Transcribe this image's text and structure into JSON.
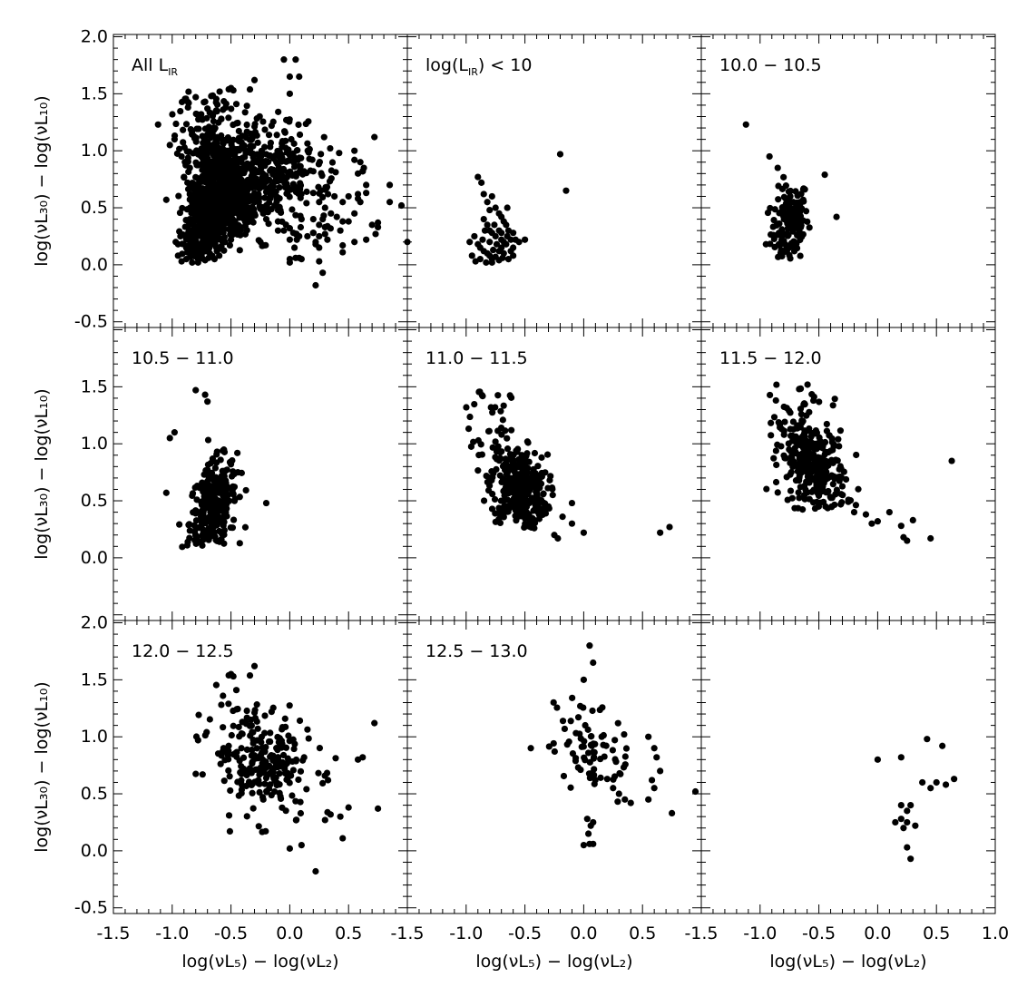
{
  "chart_data": {
    "type": "scatter",
    "layout": "3x3 grid, shared axes",
    "xlim": [
      -1.5,
      1.0
    ],
    "ylim": [
      -0.55,
      2.02
    ],
    "x_ticks": [
      "-1.5",
      "-1.0",
      "-0.5",
      "0.0",
      "0.5",
      "1.0"
    ],
    "x_ticks_inner": [
      "-1.5",
      "-1.0",
      "-0.5",
      "0.0",
      "0.5"
    ],
    "y_ticks": [
      "-0.5",
      "0.0",
      "0.5",
      "1.0",
      "1.5",
      "2.0"
    ],
    "y_ticks_middle": [
      "0.0",
      "0.5",
      "1.0",
      "1.5"
    ],
    "xlabel": "log(νL₅) − log(νL₂)",
    "ylabel": "log(νL₃₀) − log(νL₁₀)",
    "grid": false,
    "marker_color": "#000000",
    "panels": [
      {
        "label": "All L_IR",
        "label_main": "All L",
        "label_sub": "IR",
        "count_approx": 1400
      },
      {
        "label": "log(L_IR) < 10",
        "label_main": "log(L",
        "label_sub": "IR",
        "label_tail": ")  <  10",
        "points": [
          [
            -0.9,
            0.77
          ],
          [
            -0.87,
            0.72
          ],
          [
            -0.85,
            0.62
          ],
          [
            -0.82,
            0.55
          ],
          [
            -0.8,
            0.48
          ],
          [
            -0.78,
            0.6
          ],
          [
            -0.75,
            0.5
          ],
          [
            -0.72,
            0.45
          ],
          [
            -0.7,
            0.42
          ],
          [
            -0.68,
            0.38
          ],
          [
            -0.65,
            0.5
          ],
          [
            -0.85,
            0.4
          ],
          [
            -0.82,
            0.35
          ],
          [
            -0.8,
            0.3
          ],
          [
            -0.78,
            0.28
          ],
          [
            -0.75,
            0.25
          ],
          [
            -0.72,
            0.3
          ],
          [
            -0.7,
            0.22
          ],
          [
            -0.68,
            0.2
          ],
          [
            -0.65,
            0.25
          ],
          [
            -0.62,
            0.22
          ],
          [
            -0.9,
            0.18
          ],
          [
            -0.88,
            0.15
          ],
          [
            -0.85,
            0.12
          ],
          [
            -0.82,
            0.1
          ],
          [
            -0.8,
            0.08
          ],
          [
            -0.78,
            0.05
          ],
          [
            -0.75,
            0.07
          ],
          [
            -0.72,
            0.12
          ],
          [
            -0.7,
            0.15
          ],
          [
            -0.68,
            0.1
          ],
          [
            -0.66,
            0.18
          ],
          [
            -0.64,
            0.05
          ],
          [
            -0.95,
            0.08
          ],
          [
            -0.92,
            0.03
          ],
          [
            -0.88,
            0.05
          ],
          [
            -0.97,
            0.2
          ],
          [
            -0.93,
            0.25
          ],
          [
            -0.6,
            0.28
          ],
          [
            -0.58,
            0.22
          ],
          [
            -0.55,
            0.2
          ],
          [
            -0.62,
            0.12
          ],
          [
            -0.6,
            0.08
          ],
          [
            -0.5,
            0.22
          ],
          [
            -0.76,
            0.35
          ],
          [
            -0.74,
            0.18
          ],
          [
            -0.83,
            0.02
          ],
          [
            -0.78,
            0.02
          ],
          [
            -0.72,
            0.04
          ],
          [
            -0.66,
            0.35
          ],
          [
            -0.64,
            0.3
          ],
          [
            -0.7,
            0.28
          ],
          [
            -0.8,
            0.2
          ],
          [
            -0.86,
            0.22
          ],
          [
            -0.84,
            0.3
          ],
          [
            -0.77,
            0.13
          ],
          [
            -0.69,
            0.06
          ],
          [
            -0.6,
            0.15
          ],
          [
            -0.2,
            0.97
          ],
          [
            -0.15,
            0.65
          ]
        ]
      },
      {
        "label": "10.0 − 10.5",
        "count_approx": 160
      },
      {
        "label": "10.5 − 11.0",
        "count_approx": 300
      },
      {
        "label": "11.0 − 11.5",
        "count_approx": 420
      },
      {
        "label": "11.5 − 12.0",
        "count_approx": 380
      },
      {
        "label": "12.0 − 12.5",
        "count_approx": 280
      },
      {
        "label": "12.5 − 13.0",
        "count_approx": 110
      },
      {
        "label": "",
        "points": [
          [
            0.0,
            0.8
          ],
          [
            0.2,
            0.82
          ],
          [
            0.42,
            0.98
          ],
          [
            0.55,
            0.92
          ],
          [
            0.38,
            0.6
          ],
          [
            0.45,
            0.55
          ],
          [
            0.5,
            0.6
          ],
          [
            0.58,
            0.58
          ],
          [
            0.65,
            0.63
          ],
          [
            0.2,
            0.4
          ],
          [
            0.25,
            0.35
          ],
          [
            0.28,
            0.4
          ],
          [
            0.2,
            0.28
          ],
          [
            0.15,
            0.25
          ],
          [
            0.22,
            0.2
          ],
          [
            0.25,
            0.25
          ],
          [
            0.32,
            0.22
          ],
          [
            0.25,
            0.03
          ],
          [
            0.28,
            -0.07
          ]
        ]
      }
    ]
  }
}
